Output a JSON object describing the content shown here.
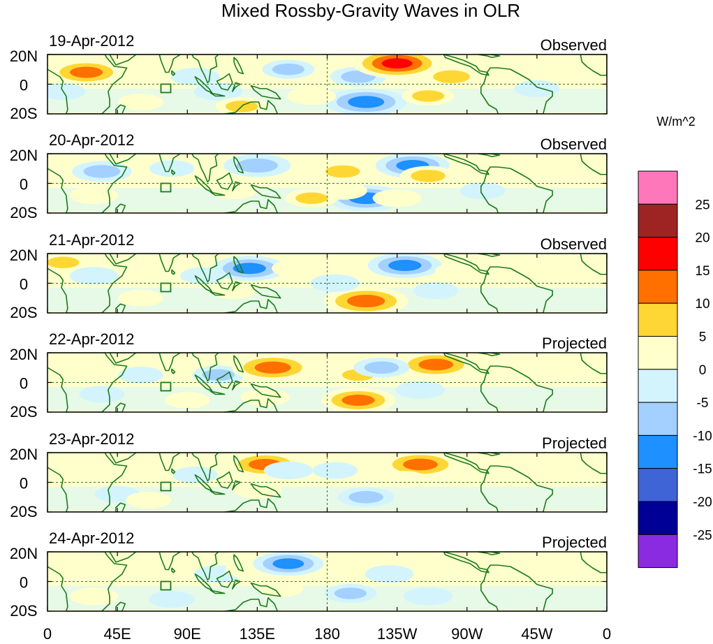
{
  "chart_data": {
    "type": "heatmap",
    "title": "Mixed Rossby-Gravity Waves in OLR",
    "colorbar_label": "W/m^2",
    "colorbar_ticks": [
      "25",
      "20",
      "15",
      "10",
      "5",
      "0",
      "-5",
      "-10",
      "-15",
      "-20",
      "-25"
    ],
    "colorbar_colors": [
      "#ff77bb",
      "#9e2424",
      "#ff0000",
      "#ff7000",
      "#ffd734",
      "#ffffcc",
      "#d3f4fd",
      "#a3d0ff",
      "#1e90ff",
      "#3f64d6",
      "#000096",
      "#8a2be2"
    ],
    "x_tick_labels": [
      "0",
      "45E",
      "90E",
      "135E",
      "180",
      "135W",
      "90W",
      "45W",
      "0"
    ],
    "y_tick_labels": [
      "20N",
      "0",
      "20S"
    ],
    "panels": [
      {
        "date": "19-Apr-2012",
        "label": "Observed"
      },
      {
        "date": "20-Apr-2012",
        "label": "Observed"
      },
      {
        "date": "21-Apr-2012",
        "label": "Observed"
      },
      {
        "date": "22-Apr-2012",
        "label": "Projected"
      },
      {
        "date": "23-Apr-2012",
        "label": "Projected"
      },
      {
        "date": "24-Apr-2012",
        "label": "Projected"
      }
    ],
    "anomalies": [
      [
        {
          "lon": 25,
          "lat": 8,
          "v": 12
        },
        {
          "lon": 10,
          "lat": -5,
          "v": -4
        },
        {
          "lon": 60,
          "lat": -12,
          "v": 4
        },
        {
          "lon": 95,
          "lat": 5,
          "v": -5
        },
        {
          "lon": 110,
          "lat": -5,
          "v": -5
        },
        {
          "lon": 125,
          "lat": -15,
          "v": 6
        },
        {
          "lon": 155,
          "lat": 10,
          "v": -6
        },
        {
          "lon": 200,
          "lat": 5,
          "v": -7
        },
        {
          "lon": 205,
          "lat": -12,
          "v": -14
        },
        {
          "lon": 225,
          "lat": 14,
          "v": 16
        },
        {
          "lon": 260,
          "lat": 5,
          "v": 8
        },
        {
          "lon": 245,
          "lat": -8,
          "v": 6
        },
        {
          "lon": 170,
          "lat": -8,
          "v": 5
        },
        {
          "lon": 315,
          "lat": -3,
          "v": -4
        },
        {
          "lon": 345,
          "lat": 10,
          "v": 4
        }
      ],
      [
        {
          "lon": 15,
          "lat": 8,
          "v": 5
        },
        {
          "lon": 35,
          "lat": 8,
          "v": -8
        },
        {
          "lon": 30,
          "lat": -8,
          "v": 5
        },
        {
          "lon": 80,
          "lat": 10,
          "v": -4
        },
        {
          "lon": 135,
          "lat": 12,
          "v": -10
        },
        {
          "lon": 120,
          "lat": -5,
          "v": 4
        },
        {
          "lon": 190,
          "lat": 8,
          "v": 7
        },
        {
          "lon": 205,
          "lat": -10,
          "v": -13
        },
        {
          "lon": 190,
          "lat": -5,
          "v": 5
        },
        {
          "lon": 235,
          "lat": 12,
          "v": -12
        },
        {
          "lon": 245,
          "lat": 5,
          "v": 7
        },
        {
          "lon": 225,
          "lat": -10,
          "v": 5
        },
        {
          "lon": 280,
          "lat": -5,
          "v": -4
        },
        {
          "lon": 170,
          "lat": -10,
          "v": 6
        }
      ],
      [
        {
          "lon": 10,
          "lat": 14,
          "v": 6
        },
        {
          "lon": 30,
          "lat": 5,
          "v": -5
        },
        {
          "lon": 60,
          "lat": -10,
          "v": 4
        },
        {
          "lon": 100,
          "lat": 5,
          "v": -4
        },
        {
          "lon": 130,
          "lat": 10,
          "v": -12
        },
        {
          "lon": 120,
          "lat": -5,
          "v": 4
        },
        {
          "lon": 160,
          "lat": 10,
          "v": 5
        },
        {
          "lon": 230,
          "lat": 12,
          "v": -12
        },
        {
          "lon": 205,
          "lat": -12,
          "v": 15
        },
        {
          "lon": 185,
          "lat": 0,
          "v": -5
        },
        {
          "lon": 250,
          "lat": -5,
          "v": -4
        },
        {
          "lon": 265,
          "lat": 8,
          "v": 5
        }
      ],
      [
        {
          "lon": 20,
          "lat": 8,
          "v": 4
        },
        {
          "lon": 35,
          "lat": -8,
          "v": -4
        },
        {
          "lon": 60,
          "lat": 5,
          "v": -4
        },
        {
          "lon": 110,
          "lat": 5,
          "v": -6
        },
        {
          "lon": 145,
          "lat": 10,
          "v": 14
        },
        {
          "lon": 140,
          "lat": -10,
          "v": 5
        },
        {
          "lon": 200,
          "lat": -12,
          "v": 12
        },
        {
          "lon": 200,
          "lat": 5,
          "v": 6
        },
        {
          "lon": 250,
          "lat": 12,
          "v": 13
        },
        {
          "lon": 215,
          "lat": 10,
          "v": -7
        },
        {
          "lon": 240,
          "lat": -5,
          "v": -5
        },
        {
          "lon": 90,
          "lat": -12,
          "v": 4
        }
      ],
      [
        {
          "lon": 25,
          "lat": 5,
          "v": 4
        },
        {
          "lon": 45,
          "lat": -8,
          "v": -4
        },
        {
          "lon": 65,
          "lat": -12,
          "v": 4
        },
        {
          "lon": 140,
          "lat": 12,
          "v": 12
        },
        {
          "lon": 135,
          "lat": -5,
          "v": 5
        },
        {
          "lon": 155,
          "lat": 8,
          "v": -5
        },
        {
          "lon": 205,
          "lat": -10,
          "v": -7
        },
        {
          "lon": 240,
          "lat": 12,
          "v": 13
        },
        {
          "lon": 230,
          "lat": 2,
          "v": 4
        },
        {
          "lon": 185,
          "lat": 8,
          "v": -4
        },
        {
          "lon": 95,
          "lat": 5,
          "v": -4
        }
      ],
      [
        {
          "lon": 20,
          "lat": 8,
          "v": 4
        },
        {
          "lon": 30,
          "lat": -10,
          "v": 5
        },
        {
          "lon": 80,
          "lat": -12,
          "v": -4
        },
        {
          "lon": 110,
          "lat": 5,
          "v": -5
        },
        {
          "lon": 130,
          "lat": 8,
          "v": 5
        },
        {
          "lon": 155,
          "lat": 12,
          "v": -11
        },
        {
          "lon": 150,
          "lat": -5,
          "v": 4
        },
        {
          "lon": 195,
          "lat": -8,
          "v": -6
        },
        {
          "lon": 220,
          "lat": 5,
          "v": -5
        },
        {
          "lon": 245,
          "lat": -10,
          "v": -5
        },
        {
          "lon": 265,
          "lat": 8,
          "v": 4
        }
      ]
    ],
    "x_range": [
      0,
      360
    ],
    "y_range": [
      -20,
      20
    ]
  }
}
